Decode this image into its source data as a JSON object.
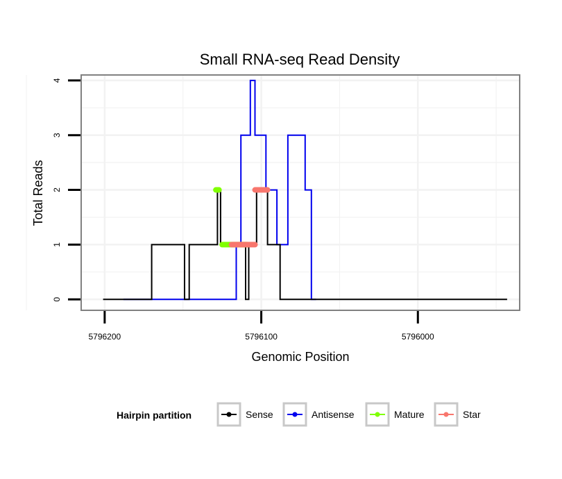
{
  "chart_data": {
    "type": "line",
    "title": "Small RNA-seq Read Density",
    "xlabel": "Genomic Position",
    "ylabel": "Total Reads",
    "xlim": [
      5796215,
      5795935
    ],
    "ylim": [
      -0.2,
      4.1
    ],
    "x_ticks": [
      5796200,
      5796100,
      5796000
    ],
    "x_tick_labels": [
      "5796200",
      "5796100",
      "5796000"
    ],
    "y_ticks": [
      0,
      1,
      2,
      3,
      4
    ],
    "y_tick_labels": [
      "0",
      "1",
      "2",
      "3",
      "4"
    ],
    "grid": true,
    "legend": {
      "title": "Hairpin partition",
      "position": "bottom",
      "entries": [
        "Sense",
        "Antisense",
        "Mature",
        "Star"
      ]
    },
    "series": [
      {
        "name": "Antisense",
        "color": "#0000ee",
        "style": "line",
        "points": [
          [
            5796188,
            0
          ],
          [
            5796116,
            0
          ],
          [
            5796116,
            1
          ],
          [
            5796113,
            1
          ],
          [
            5796113,
            3
          ],
          [
            5796107,
            3
          ],
          [
            5796107,
            4
          ],
          [
            5796104,
            4
          ],
          [
            5796104,
            3
          ],
          [
            5796097,
            3
          ],
          [
            5796097,
            2
          ],
          [
            5796090,
            2
          ],
          [
            5796090,
            1
          ],
          [
            5796083,
            1
          ],
          [
            5796083,
            3
          ],
          [
            5796072,
            3
          ],
          [
            5796072,
            2
          ],
          [
            5796068,
            2
          ],
          [
            5796068,
            0
          ],
          [
            5796065,
            0
          ]
        ]
      },
      {
        "name": "Sense",
        "color": "#000000",
        "style": "line",
        "points": [
          [
            5796201,
            0
          ],
          [
            5796170,
            0
          ],
          [
            5796170,
            1
          ],
          [
            5796149,
            1
          ],
          [
            5796149,
            0
          ],
          [
            5796146,
            0
          ],
          [
            5796146,
            1
          ],
          [
            5796128,
            1
          ],
          [
            5796128,
            2
          ],
          [
            5796126,
            2
          ],
          [
            5796126,
            1
          ],
          [
            5796110,
            1
          ],
          [
            5796110,
            0
          ],
          [
            5796108,
            0
          ],
          [
            5796108,
            1
          ],
          [
            5796103,
            1
          ],
          [
            5796103,
            2
          ],
          [
            5796096,
            2
          ],
          [
            5796096,
            1
          ],
          [
            5796088,
            1
          ],
          [
            5796088,
            0
          ],
          [
            5795943,
            0
          ]
        ]
      },
      {
        "name": "Mature",
        "color": "#80ff00",
        "style": "segment",
        "points": [
          [
            5796129,
            2
          ],
          [
            5796127,
            2
          ],
          [
            5796125,
            1
          ],
          [
            5796109,
            1
          ]
        ]
      },
      {
        "name": "Star",
        "color": "#f8766d",
        "style": "segment",
        "points": [
          [
            5796119,
            1
          ],
          [
            5796104,
            1
          ],
          [
            5796104,
            2
          ],
          [
            5796096,
            2
          ]
        ]
      }
    ]
  }
}
